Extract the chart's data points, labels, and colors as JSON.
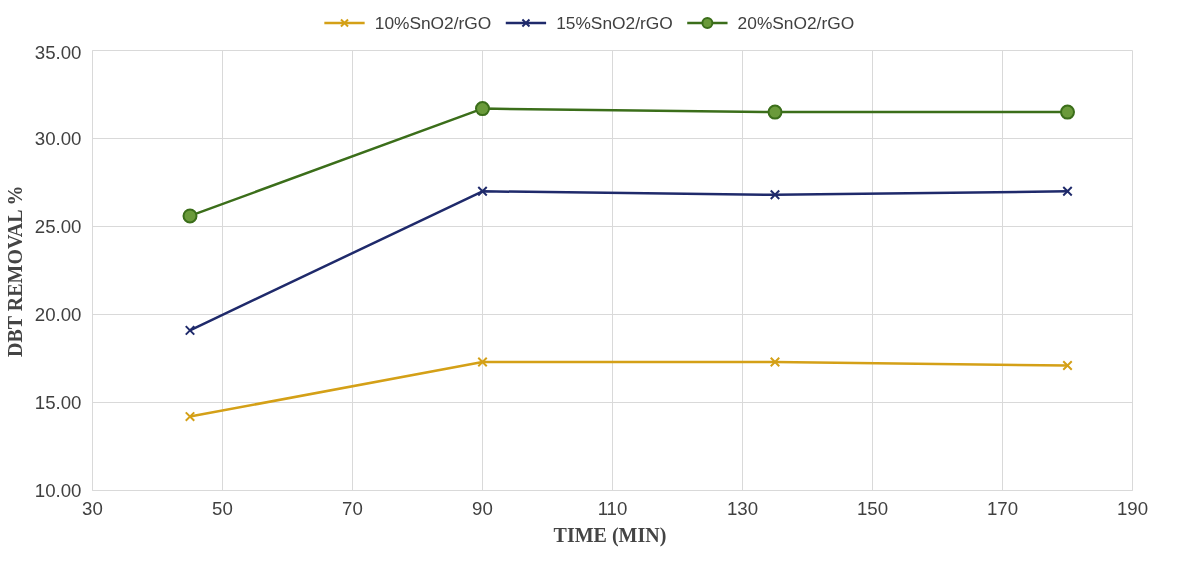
{
  "chart_data": {
    "type": "line",
    "xlabel": "TIME  (MIN)",
    "ylabel": "DBT REMOVAL %",
    "x": [
      45,
      90,
      135,
      180
    ],
    "series": [
      {
        "name": "10%SnO2/rGO",
        "color": "#d4a017",
        "marker": "cross",
        "values": [
          14.2,
          17.3,
          17.3,
          17.1
        ]
      },
      {
        "name": "15%SnO2/rGO",
        "color": "#1f2a6b",
        "marker": "cross",
        "values": [
          19.1,
          27.0,
          26.8,
          27.0
        ]
      },
      {
        "name": "20%SnO2/rGO",
        "color": "#3b6e1a",
        "marker": "circle",
        "values": [
          25.6,
          31.7,
          31.5,
          31.5
        ]
      }
    ],
    "xlim": [
      30,
      190
    ],
    "xticks": [
      30,
      50,
      70,
      90,
      110,
      130,
      150,
      170,
      190
    ],
    "ylim": [
      10,
      35
    ],
    "yticks": [
      {
        "value": 10,
        "label": "10.00"
      },
      {
        "value": 15,
        "label": "15.00"
      },
      {
        "value": 20,
        "label": "20.00"
      },
      {
        "value": 25,
        "label": "25.00"
      },
      {
        "value": 30,
        "label": "30.00"
      },
      {
        "value": 35,
        "label": "35.00"
      }
    ],
    "grid": true,
    "legend": "top",
    "line_style": "solid"
  }
}
